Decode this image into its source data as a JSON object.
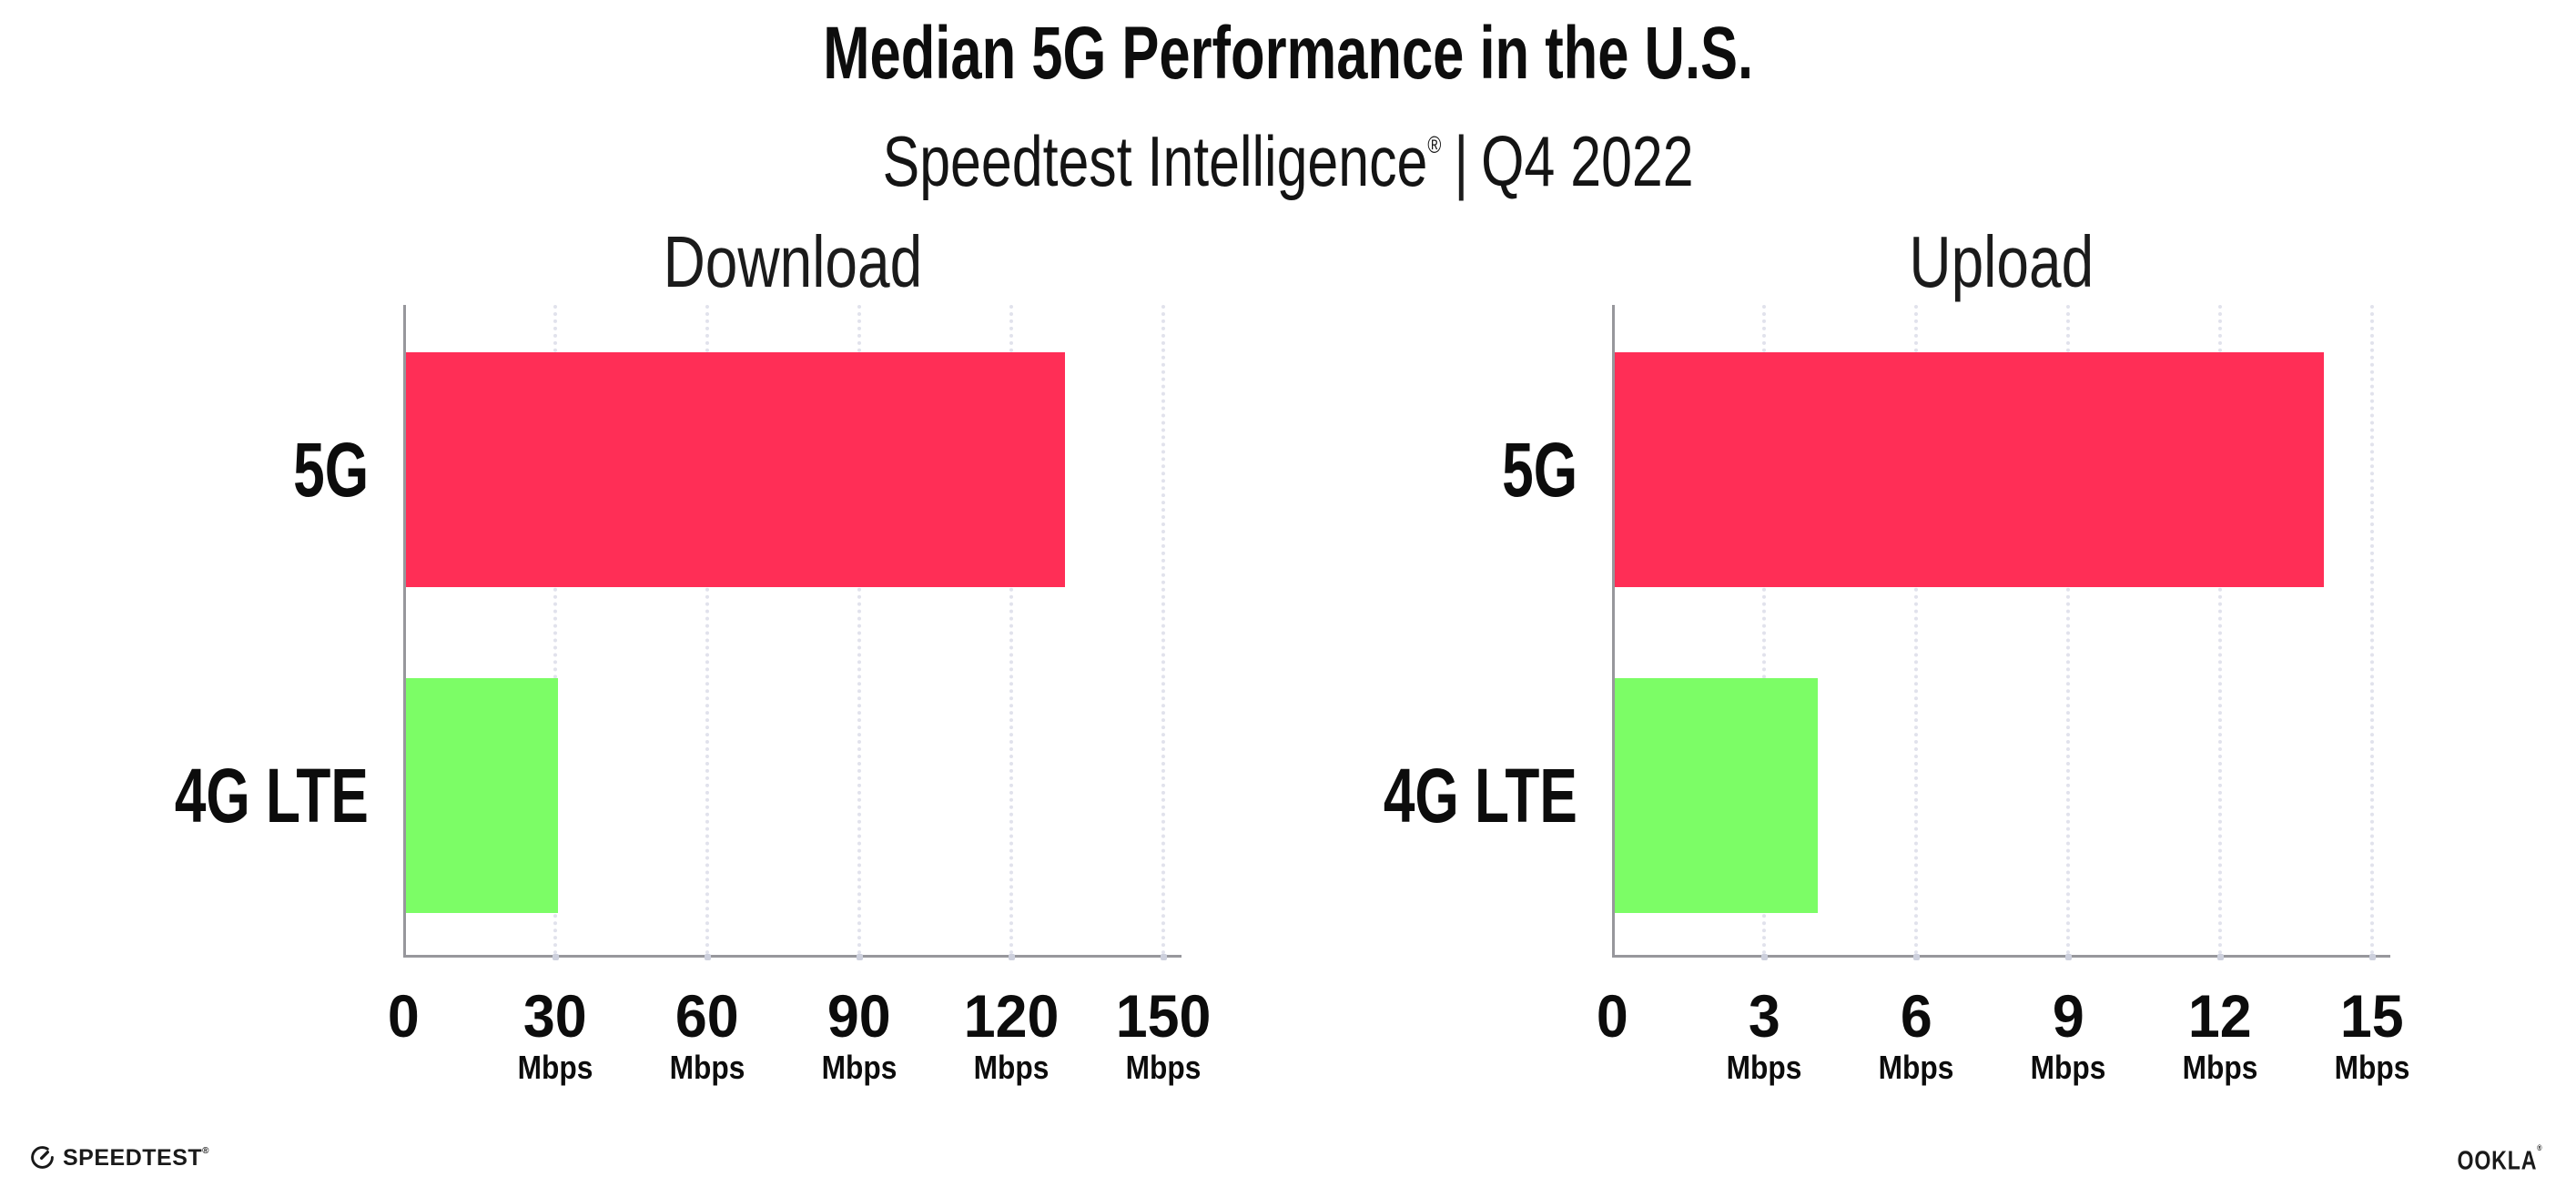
{
  "header": {
    "title": "Median 5G Performance in the U.S.",
    "subtitle_brand": "Speedtest Intelligence",
    "subtitle_reg": "®",
    "subtitle_separator": "|",
    "subtitle_period": "Q4 2022"
  },
  "footer": {
    "speedtest_text": "SPEEDTEST",
    "speedtest_reg": "®",
    "ookla_text": "OOKLA",
    "ookla_reg": "®",
    "gauge_icon": "speedometer-gauge-icon"
  },
  "colors": {
    "bar_5g": "#ff2e56",
    "bar_4g_lte": "#7cfd66",
    "axis": "#97979c",
    "gridline": "#e1e2ec",
    "background": "#ffffff",
    "text": "#111111"
  },
  "chart_data": [
    {
      "type": "bar",
      "orientation": "horizontal",
      "title": "Download",
      "categories": [
        "5G",
        "4G LTE"
      ],
      "values": [
        130,
        30
      ],
      "unit": "Mbps",
      "xlabel": "",
      "ylabel": "",
      "xlim": [
        0,
        150
      ],
      "xticks": [
        0,
        30,
        60,
        90,
        120,
        150
      ],
      "grid": "dotted-vertical",
      "legend": "none",
      "bar_colors": [
        "#ff2e56",
        "#7cfd66"
      ]
    },
    {
      "type": "bar",
      "orientation": "horizontal",
      "title": "Upload",
      "categories": [
        "5G",
        "4G LTE"
      ],
      "values": [
        14,
        4
      ],
      "unit": "Mbps",
      "xlabel": "",
      "ylabel": "",
      "xlim": [
        0,
        15
      ],
      "xticks": [
        0,
        3,
        6,
        9,
        12,
        15
      ],
      "grid": "dotted-vertical",
      "legend": "none",
      "bar_colors": [
        "#ff2e56",
        "#7cfd66"
      ]
    }
  ]
}
